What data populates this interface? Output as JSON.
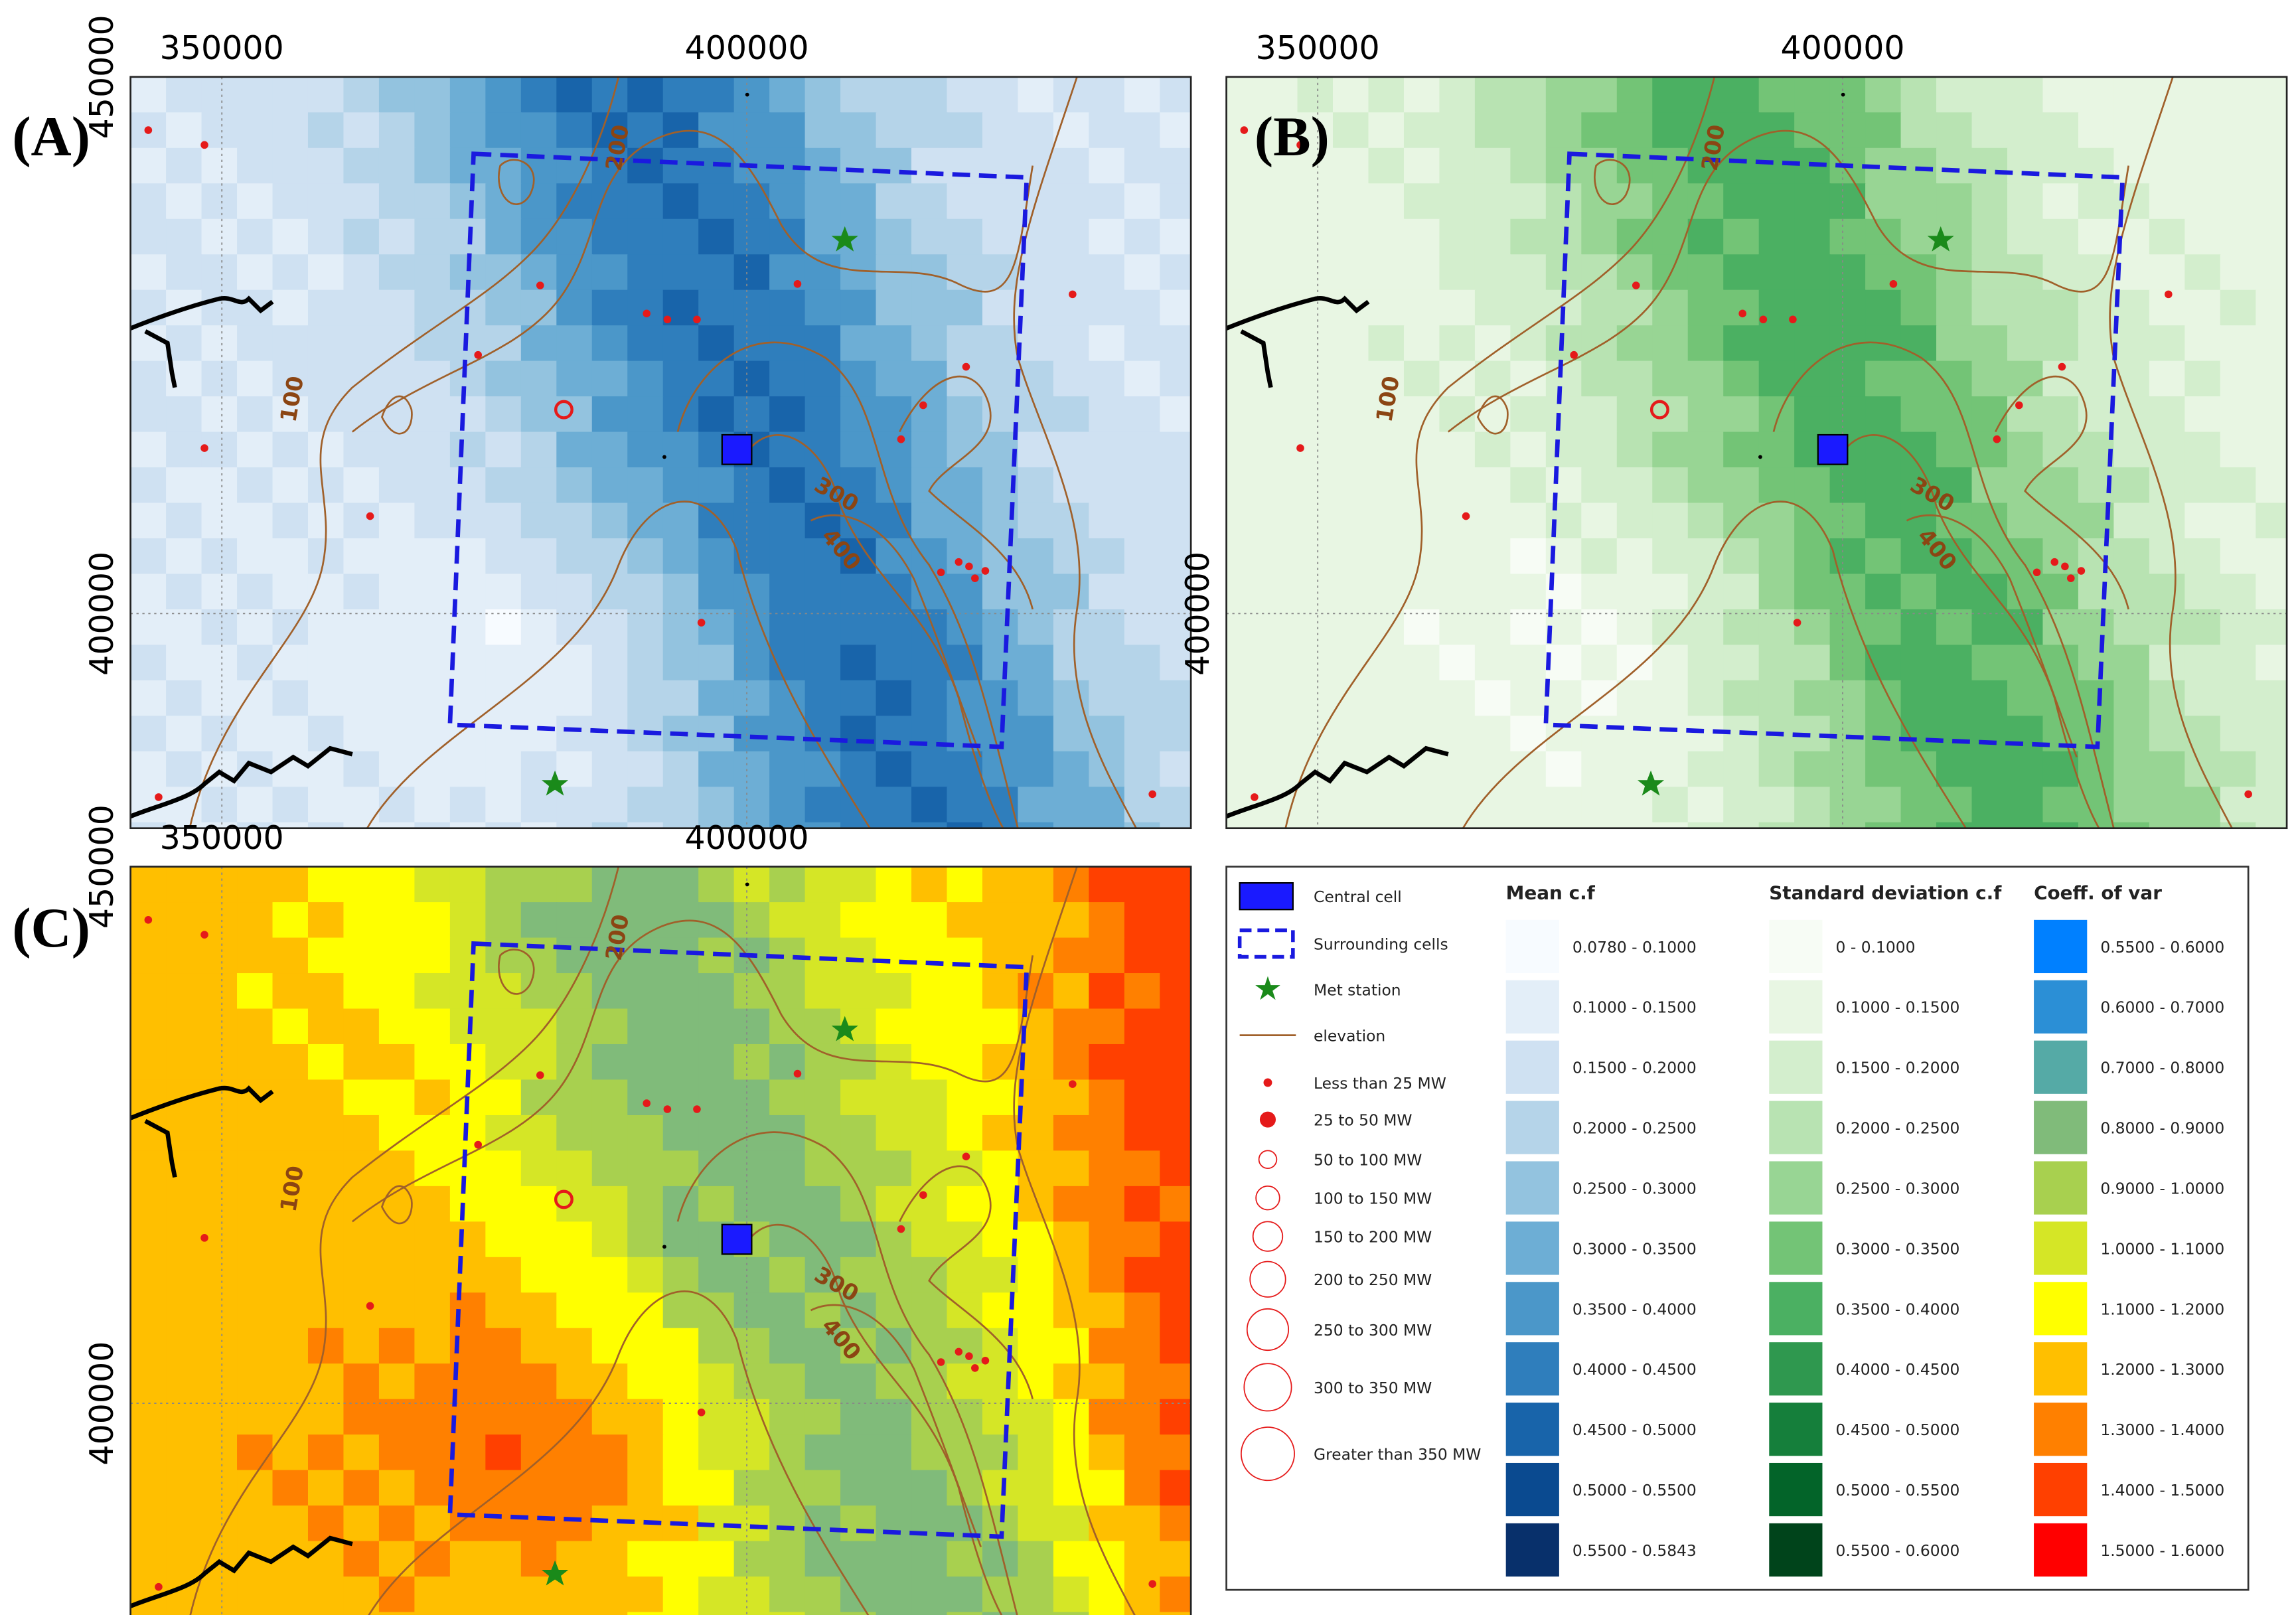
{
  "panels": [
    {
      "label": "(A)",
      "xticks": [
        350000,
        400000
      ],
      "yticks": [
        450000,
        400000
      ]
    },
    {
      "label": "(B)",
      "xticks": [
        350000,
        400000
      ],
      "yticks": [
        400000
      ]
    },
    {
      "label": "(C)",
      "xticks": [
        350000,
        400000
      ],
      "yticks": [
        450000,
        400000
      ]
    }
  ],
  "xlim": [
    341300,
    442300
  ],
  "ylim": [
    380000,
    450000
  ],
  "contour_labels": [
    "100",
    "200",
    "300",
    "400"
  ],
  "legend": {
    "symbols": [
      "Central cell",
      "Surrounding cells",
      "Met station",
      "elevation",
      "Less than 25 MW",
      "25 to 50 MW",
      "50 to 100 MW",
      "100 to 150 MW",
      "150 to 200 MW",
      "200 to 250 MW",
      "250 to 300 MW",
      "300 to 350 MW",
      "Greater than 350 MW"
    ],
    "ramps": [
      {
        "title": "Mean c.f",
        "classes": [
          {
            "label": "0.0780 - 0.1000",
            "color": "#f7fbff"
          },
          {
            "label": "0.1000 - 0.1500",
            "color": "#e3eef8"
          },
          {
            "label": "0.1500 - 0.2000",
            "color": "#cfe1f2"
          },
          {
            "label": "0.2000 - 0.2500",
            "color": "#b5d4e9"
          },
          {
            "label": "0.2500 - 0.3000",
            "color": "#93c3df"
          },
          {
            "label": "0.3000 - 0.3500",
            "color": "#6daed5"
          },
          {
            "label": "0.3500 - 0.4000",
            "color": "#4b97c9"
          },
          {
            "label": "0.4000 - 0.4500",
            "color": "#2f7ebc"
          },
          {
            "label": "0.4500 - 0.5000",
            "color": "#1864aa"
          },
          {
            "label": "0.5000 - 0.5500",
            "color": "#0a4a90"
          },
          {
            "label": "0.5500 - 0.5843",
            "color": "#08306b"
          }
        ]
      },
      {
        "title": "Standard deviation c.f",
        "classes": [
          {
            "label": "0 - 0.1000",
            "color": "#f7fcf5"
          },
          {
            "label": "0.1000 - 0.1500",
            "color": "#e8f6e3"
          },
          {
            "label": "0.1500 - 0.2000",
            "color": "#d3eecd"
          },
          {
            "label": "0.2000 - 0.2500",
            "color": "#b8e3b2"
          },
          {
            "label": "0.2500 - 0.3000",
            "color": "#98d594"
          },
          {
            "label": "0.3000 - 0.3500",
            "color": "#73c476"
          },
          {
            "label": "0.3500 - 0.4000",
            "color": "#4bb062"
          },
          {
            "label": "0.4000 - 0.4500",
            "color": "#2f984f"
          },
          {
            "label": "0.4500 - 0.5000",
            "color": "#157f3b"
          },
          {
            "label": "0.5000 - 0.5500",
            "color": "#036429"
          },
          {
            "label": "0.5500 - 0.6000",
            "color": "#00441b"
          }
        ]
      },
      {
        "title": "Coeff. of var",
        "classes": [
          {
            "label": "0.5500 - 0.6000",
            "color": "#0080ff"
          },
          {
            "label": "0.6000 - 0.7000",
            "color": "#2b8fd6"
          },
          {
            "label": "0.7000 - 0.8000",
            "color": "#55aaa6"
          },
          {
            "label": "0.8000 - 0.9000",
            "color": "#80bb7a"
          },
          {
            "label": "0.9000 - 1.0000",
            "color": "#a8d04f"
          },
          {
            "label": "1.0000 - 1.1000",
            "color": "#d5e626"
          },
          {
            "label": "1.1000 - 1.2000",
            "color": "#ffff00"
          },
          {
            "label": "1.2000 - 1.3000",
            "color": "#ffbf00"
          },
          {
            "label": "1.3000 - 1.4000",
            "color": "#ff8000"
          },
          {
            "label": "1.4000 - 1.5000",
            "color": "#ff4000"
          },
          {
            "label": "1.5000 - 1.6000",
            "color": "#ff0000"
          }
        ]
      }
    ]
  }
}
